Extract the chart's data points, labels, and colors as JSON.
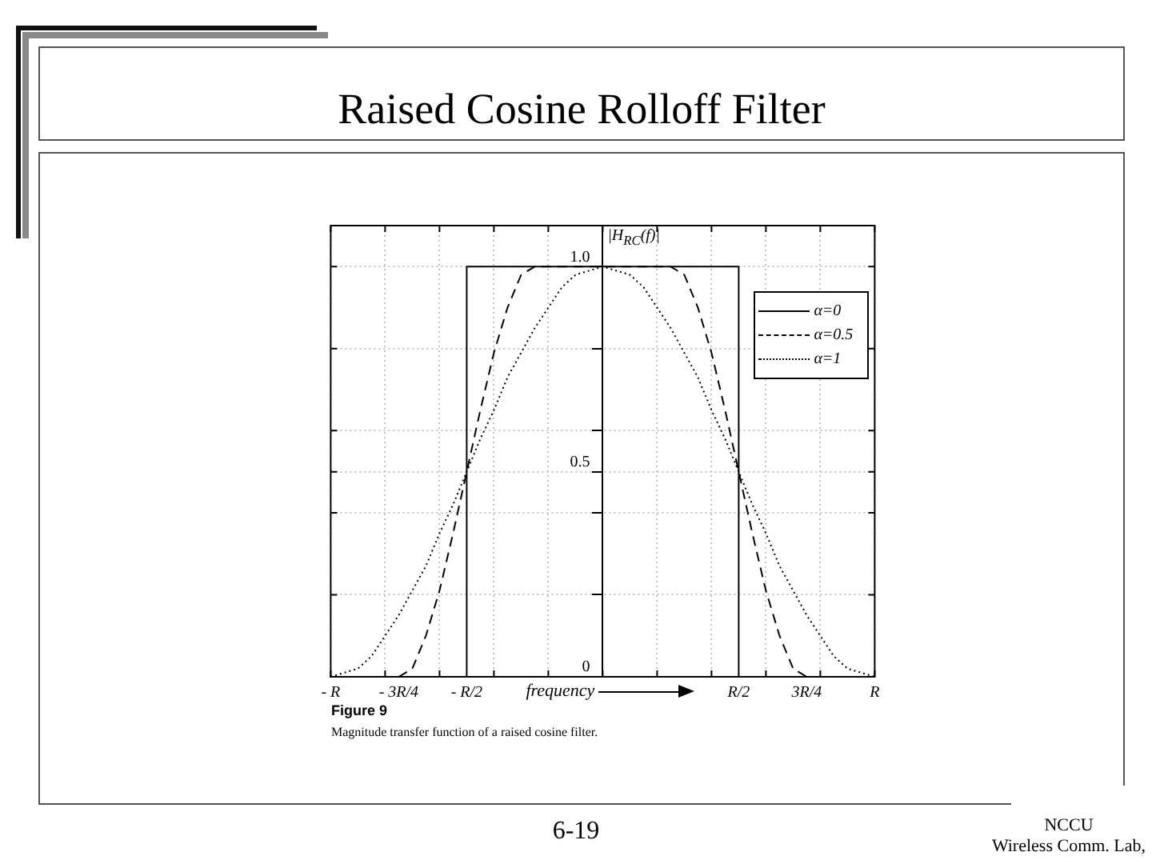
{
  "chart_data": {
    "type": "line",
    "title": "Raised Cosine Rolloff Filter",
    "xlabel": "frequency",
    "ylabel": "|H$_{RC}$(f)|",
    "annotations": [
      "Figure 9",
      "Magnitude transfer function of a raised cosine filter.",
      "6-19",
      "NCCU",
      "Wireless Comm. Lab,"
    ],
    "categories": [
      "- R",
      null,
      null,
      null,
      null,
      "- 3R/4",
      null,
      null,
      null,
      null,
      "- R/2",
      null,
      null,
      null,
      null,
      null,
      null,
      null,
      null,
      null,
      null,
      null,
      null,
      null,
      null,
      null,
      null,
      null,
      null,
      null,
      "R/2",
      null,
      null,
      null,
      null,
      "3R/4",
      null,
      null,
      null,
      null,
      "R"
    ],
    "ylim": [
      0,
      1.1
    ],
    "yticks": [
      0,
      {
        "value": 0.2,
        "label": null
      },
      {
        "value": 0.4,
        "label": null
      },
      0.5,
      {
        "value": 0.6,
        "label": null
      },
      {
        "value": 0.8,
        "label": null
      },
      {
        "value": 1,
        "label": "1.0"
      }
    ],
    "grid": true,
    "legend": "top right",
    "marker": "none",
    "series": [
      {
        "name": "α=0",
        "type": "step",
        "color": "#000000",
        "line_style": "solid",
        "values": [
          null,
          null,
          null,
          null,
          null,
          null,
          null,
          null,
          null,
          0,
          1,
          1,
          1,
          1,
          1,
          1,
          1,
          1,
          1,
          1,
          1,
          1,
          1,
          1,
          1,
          1,
          1,
          1,
          1,
          1,
          0,
          null,
          null,
          null,
          null,
          null,
          null,
          null,
          null,
          null,
          null
        ]
      },
      {
        "name": "α=0.5",
        "color": "#000000",
        "line_style": "dashed",
        "values": [
          null,
          null,
          null,
          null,
          null,
          0,
          0.02,
          0.1,
          0.21,
          0.35,
          0.5,
          0.65,
          0.79,
          0.9,
          0.98,
          1,
          1,
          1,
          1,
          1,
          1,
          1,
          1,
          1,
          1,
          1,
          0.98,
          0.9,
          0.79,
          0.65,
          0.5,
          0.35,
          0.21,
          0.1,
          0.02,
          0,
          null,
          null,
          null,
          null,
          null
        ]
      },
      {
        "name": "α=1",
        "color": "#000000",
        "line_style": "dotted",
        "values": [
          0,
          0.01,
          0.02,
          0.05,
          0.1,
          0.15,
          0.21,
          0.27,
          0.35,
          0.42,
          0.5,
          0.58,
          0.65,
          0.73,
          0.79,
          0.85,
          0.9,
          0.95,
          0.98,
          0.99,
          1,
          0.99,
          0.98,
          0.95,
          0.9,
          0.85,
          0.79,
          0.73,
          0.65,
          0.58,
          0.5,
          0.42,
          0.35,
          0.27,
          0.21,
          0.15,
          0.1,
          0.05,
          0.02,
          0.01,
          0
        ]
      }
    ]
  }
}
